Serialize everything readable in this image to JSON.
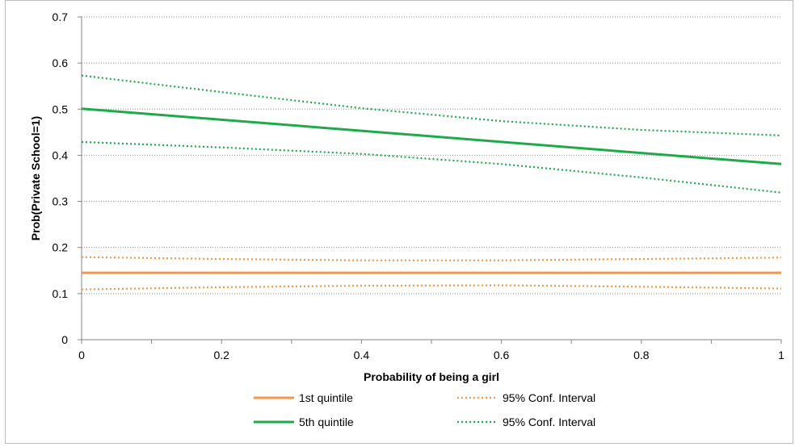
{
  "chart_data": {
    "type": "line",
    "xlabel": "Probability of being a girl",
    "ylabel": "Prob(Private School=1)",
    "xlim": [
      0,
      1
    ],
    "ylim": [
      0,
      0.7
    ],
    "x_ticks": [
      "0",
      "0.2",
      "0.4",
      "0.6",
      "0.8",
      "1"
    ],
    "x_tick_values": [
      0,
      0.2,
      0.4,
      0.6,
      0.8,
      1
    ],
    "y_ticks": [
      "0",
      "0.1",
      "0.2",
      "0.3",
      "0.4",
      "0.5",
      "0.6",
      "0.7"
    ],
    "y_tick_values": [
      0,
      0.1,
      0.2,
      0.3,
      0.4,
      0.5,
      0.6,
      0.7
    ],
    "grid": "horizontal dotted",
    "legend_position": "bottom",
    "colors": {
      "orange": "#f79646",
      "green": "#1faa4a"
    },
    "series": [
      {
        "name": "1st quintile",
        "color": "#f79646",
        "style": "solid",
        "x": [
          0,
          0.2,
          0.4,
          0.6,
          0.8,
          1
        ],
        "values": [
          0.145,
          0.145,
          0.145,
          0.145,
          0.145,
          0.145
        ]
      },
      {
        "name": "95% Conf. Interval",
        "color": "#f79646",
        "style": "dotted",
        "x": [
          0,
          0.2,
          0.4,
          0.6,
          0.8,
          1
        ],
        "values": [
          0.179,
          0.175,
          0.172,
          0.172,
          0.175,
          0.178
        ]
      },
      {
        "name": "95% Conf. Interval",
        "color": "#f79646",
        "style": "dotted",
        "x": [
          0,
          0.2,
          0.4,
          0.6,
          0.8,
          1
        ],
        "values": [
          0.109,
          0.114,
          0.117,
          0.118,
          0.115,
          0.111
        ]
      },
      {
        "name": "5th quintile",
        "color": "#1faa4a",
        "style": "solid",
        "x": [
          0,
          0.2,
          0.4,
          0.6,
          0.8,
          1
        ],
        "values": [
          0.501,
          0.477,
          0.453,
          0.429,
          0.405,
          0.381
        ]
      },
      {
        "name": "95% Conf. Interval",
        "color": "#1faa4a",
        "style": "dotted",
        "x": [
          0,
          0.2,
          0.4,
          0.6,
          0.8,
          1
        ],
        "values": [
          0.573,
          0.537,
          0.502,
          0.474,
          0.455,
          0.443
        ]
      },
      {
        "name": "95% Conf. Interval",
        "color": "#1faa4a",
        "style": "dotted",
        "x": [
          0,
          0.2,
          0.4,
          0.6,
          0.8,
          1
        ],
        "values": [
          0.429,
          0.417,
          0.403,
          0.381,
          0.352,
          0.319
        ]
      }
    ],
    "legend": [
      {
        "label": "1st quintile",
        "color": "#f79646",
        "style": "solid"
      },
      {
        "label": "95% Conf. Interval",
        "color": "#f79646",
        "style": "dotted"
      },
      {
        "label": "5th quintile",
        "color": "#1faa4a",
        "style": "solid"
      },
      {
        "label": "95% Conf. Interval",
        "color": "#1faa4a",
        "style": "dotted"
      }
    ]
  }
}
